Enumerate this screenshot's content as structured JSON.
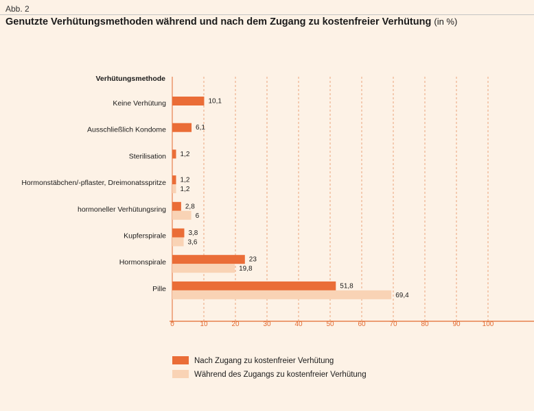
{
  "figure_label": "Abb. 2",
  "title": "Genutzte Verhütungsmethoden während und nach dem Zugang zu kostenfreier Verhütung",
  "title_unit": "(in %)",
  "colors": {
    "after": "#ea6d37",
    "during": "#f9d3b5",
    "axis": "#e2682e",
    "grid": "#e7905f"
  },
  "chart_data": {
    "type": "bar",
    "orientation": "horizontal",
    "ylabel": "Verhütungsmethode",
    "categories": [
      "Keine Verhütung",
      "Ausschließlich Kondome",
      "Sterilisation",
      "Hormonstäbchen/-pflaster, Dreimonatsspritze",
      "hormoneller Verhütungsring",
      "Kupferspirale",
      "Hormonspirale",
      "Pille"
    ],
    "series": [
      {
        "name": "Nach Zugang zu kostenfreier Verhütung",
        "values": [
          10.1,
          6.1,
          1.2,
          1.2,
          2.8,
          3.8,
          23,
          51.8
        ],
        "labels": [
          "10,1",
          "6,1",
          "1,2",
          "1,2",
          "2,8",
          "3,8",
          "23",
          "51,8"
        ]
      },
      {
        "name": "Während des Zugangs zu kostenfreier Verhütung",
        "values": [
          null,
          null,
          null,
          1.2,
          6,
          3.6,
          19.8,
          69.4
        ],
        "labels": [
          "",
          "",
          "",
          "1,2",
          "6",
          "3,6",
          "19,8",
          "69,4"
        ]
      }
    ],
    "xlim": [
      0,
      100
    ],
    "xticks": [
      0,
      10,
      20,
      30,
      40,
      50,
      60,
      70,
      80,
      90,
      100
    ],
    "grid": "vertical dashed",
    "legend": "bottom"
  }
}
